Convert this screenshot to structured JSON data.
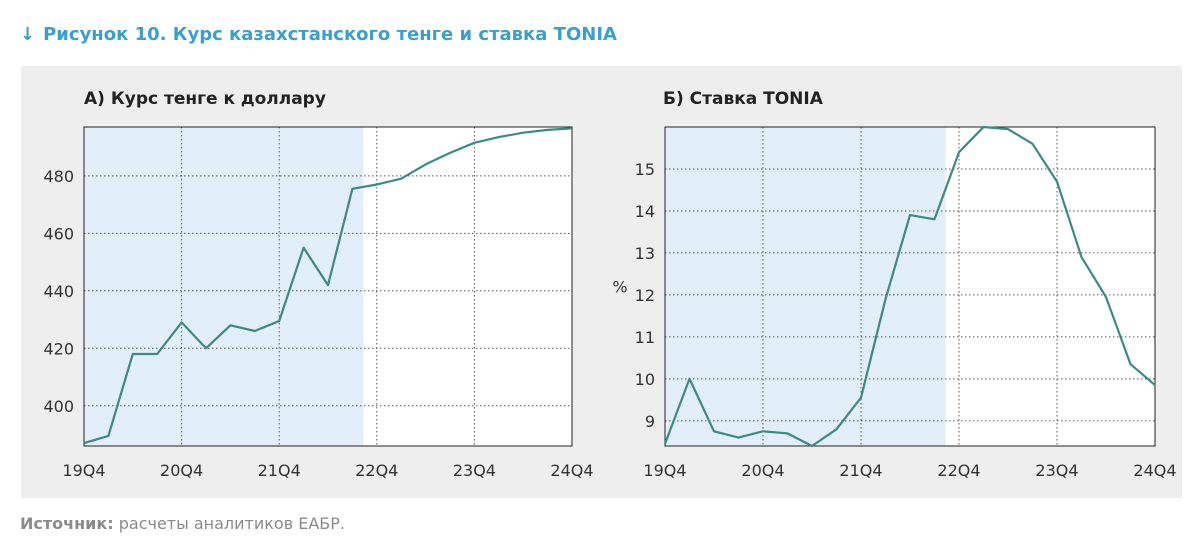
{
  "figure": {
    "arrow": "↓",
    "title": "Рисунок 10. Курс казахстанского тенге и ставка TONIA"
  },
  "source": {
    "label": "Источник:",
    "text": " расчеты аналитиков ЕАБР."
  },
  "colors": {
    "title": "#3a9fcf",
    "line": "#3b8a86",
    "shade": "#e2eef9",
    "panel": "#eeeeee"
  },
  "chart_data": [
    {
      "type": "line",
      "title": "А) Курс тенге к доллару",
      "xlabel": "",
      "ylabel": "",
      "x_ticks": [
        "19Q4",
        "20Q4",
        "21Q4",
        "22Q4",
        "23Q4",
        "24Q4"
      ],
      "x": [
        "19Q4",
        "20Q1",
        "20Q2",
        "20Q3",
        "20Q4",
        "21Q1",
        "21Q2",
        "21Q3",
        "21Q4",
        "22Q1",
        "22Q2",
        "22Q3",
        "22Q4",
        "23Q1",
        "23Q2",
        "23Q3",
        "23Q4",
        "24Q1",
        "24Q2",
        "24Q3",
        "24Q4"
      ],
      "values": [
        387,
        389.5,
        418,
        418,
        429,
        420,
        428,
        426,
        429.5,
        455,
        442,
        475.5,
        477,
        479,
        484,
        488,
        491.5,
        493.5,
        495,
        496,
        496.5
      ],
      "ylim": [
        386,
        497
      ],
      "y_ticks": [
        400,
        420,
        440,
        460,
        480
      ],
      "shaded_range": [
        "19Q4",
        "22Q3"
      ],
      "grid": true,
      "legend": "none"
    },
    {
      "type": "line",
      "title": "Б) Ставка TONIA",
      "xlabel": "",
      "ylabel": "%",
      "x_ticks": [
        "19Q4",
        "20Q4",
        "21Q4",
        "22Q4",
        "23Q4",
        "24Q4"
      ],
      "x": [
        "19Q4",
        "20Q1",
        "20Q2",
        "20Q3",
        "20Q4",
        "21Q1",
        "21Q2",
        "21Q3",
        "21Q4",
        "22Q1",
        "22Q2",
        "22Q3",
        "22Q4",
        "23Q1",
        "23Q2",
        "23Q3",
        "23Q4",
        "24Q1",
        "24Q2",
        "24Q3",
        "24Q4"
      ],
      "values": [
        8.45,
        10.0,
        8.75,
        8.6,
        8.75,
        8.7,
        8.4,
        8.8,
        9.55,
        11.9,
        13.9,
        13.8,
        15.4,
        16.0,
        15.95,
        15.6,
        14.7,
        12.9,
        11.95,
        10.35,
        9.85
      ],
      "ylim": [
        8.4,
        16.0
      ],
      "y_ticks": [
        9,
        10,
        11,
        12,
        13,
        14,
        15
      ],
      "shaded_range": [
        "19Q4",
        "22Q3"
      ],
      "grid": true,
      "legend": "none"
    }
  ]
}
